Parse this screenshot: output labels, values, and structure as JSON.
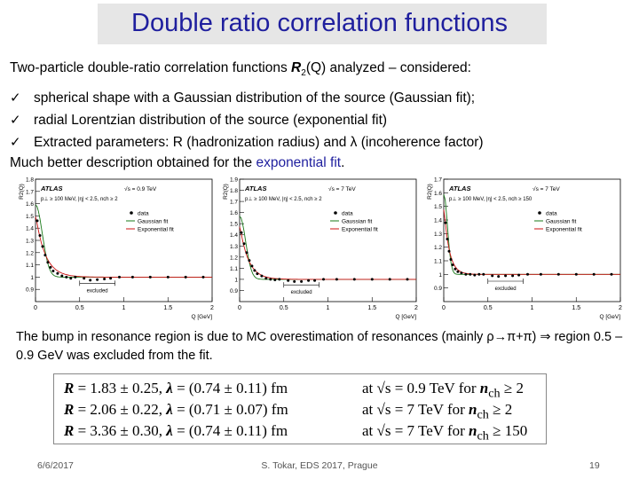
{
  "slide": {
    "title": "Double ratio correlation functions",
    "intro_text": "Two-particle double-ratio correlation functions ",
    "intro_symbol": "R",
    "intro_sub": "2",
    "intro_after": "(Q) analyzed – considered:",
    "bullets": [
      "spherical shape with a Gaussian distribution of the source (Gaussian fit);",
      "radial Lorentzian distribution of the source (exponential fit)",
      "Extracted parameters: R  (hadronization radius) and λ (incoherence factor)"
    ],
    "better_text": "Much better description obtained for the ",
    "better_highlight": "exponential fit",
    "better_end": ".",
    "bump_text": "The bump in resonance region is due to MC overestimation of resonances (mainly ρ→π+π) ⇒ region 0.5 – 0.9 GeV was excluded from the fit.",
    "results": [
      {
        "R": "R",
        "r_val": " = 1.83 ± 0.25, ",
        "lambda": "λ",
        "l_val": " = (0.74 ± 0.11) fm",
        "cond": "at √s = 0.9 TeV for ",
        "n": "n",
        "nsub": "ch",
        "ncut": " ≥    2"
      },
      {
        "R": "R",
        "r_val": " = 2.06 ± 0.22, ",
        "lambda": "λ",
        "l_val": " = (0.71 ± 0.07) fm",
        "cond": "at √s = 7 TeV    for ",
        "n": "n",
        "nsub": "ch",
        "ncut": " ≥    2"
      },
      {
        "R": "R",
        "r_val": " = 3.36 ± 0.30, ",
        "lambda": "λ",
        "l_val": " = (0.74 ± 0.11) fm",
        "cond": "at √s = 7 TeV    for ",
        "n": "n",
        "nsub": "ch",
        "ncut": " ≥ 150"
      }
    ],
    "footer_date": "6/6/2017",
    "footer_center": "S. Tokar, EDS 2017, Prague",
    "footer_page": "19",
    "colors": {
      "title": "#1f1f9e",
      "gauss": "#1a7a1a",
      "expo": "#cc1111"
    }
  },
  "chart_data": [
    {
      "type": "scatter",
      "atlas": "ATLAS",
      "energy_label": "√s = 0.9 TeV",
      "cuts": "p⊥ ≥ 100 MeV, |η| < 2.5, nch ≥ 2",
      "legend": [
        "data",
        "Gaussian fit",
        "Exponential fit"
      ],
      "excluded_label": "excluded",
      "ylabel": "R2(Q)",
      "xlabel": "Q [GeV]",
      "ylim": [
        0.8,
        1.8
      ],
      "xlim": [
        0,
        2
      ],
      "x_ticks": [
        "0",
        "0.5",
        "1",
        "1.5",
        "2"
      ],
      "y_ticks": [
        "0.9",
        "1",
        "1.1",
        "1.2",
        "1.3",
        "1.4",
        "1.5",
        "1.6",
        "1.7",
        "1.8"
      ],
      "excluded_range": [
        0.5,
        0.9
      ],
      "series": [
        {
          "name": "data",
          "x": [
            0.02,
            0.05,
            0.08,
            0.11,
            0.14,
            0.17,
            0.2,
            0.25,
            0.3,
            0.35,
            0.4,
            0.45,
            0.55,
            0.62,
            0.7,
            0.78,
            0.85,
            0.95,
            1.1,
            1.3,
            1.5,
            1.7,
            1.9
          ],
          "y": [
            1.46,
            1.34,
            1.25,
            1.18,
            1.12,
            1.08,
            1.05,
            1.03,
            1.01,
            1.0,
            0.99,
            1.0,
            0.99,
            0.975,
            0.98,
            0.985,
            0.99,
            1.0,
            1.0,
            1.0,
            1.0,
            1.0,
            1.0
          ]
        },
        {
          "name": "Gaussian fit",
          "r": 1.83,
          "lambda": 0.74
        },
        {
          "name": "Exponential fit",
          "r": 1.83,
          "lambda": 0.74
        }
      ]
    },
    {
      "type": "scatter",
      "atlas": "ATLAS",
      "energy_label": "√s = 7 TeV",
      "cuts": "p⊥ ≥ 100 MeV, |η| < 2.5, nch ≥ 2",
      "legend": [
        "data",
        "Gaussian fit",
        "Exponential fit"
      ],
      "excluded_label": "excluded",
      "ylabel": "R2(Q)",
      "xlabel": "Q [GeV]",
      "ylim": [
        0.8,
        1.9
      ],
      "xlim": [
        0,
        2
      ],
      "x_ticks": [
        "0",
        "0.5",
        "1",
        "1.5",
        "2"
      ],
      "y_ticks": [
        "0.9",
        "1",
        "1.1",
        "1.2",
        "1.3",
        "1.4",
        "1.5",
        "1.6",
        "1.7",
        "1.8",
        "1.9"
      ],
      "excluded_range": [
        0.5,
        0.9
      ],
      "series": [
        {
          "name": "data",
          "x": [
            0.02,
            0.05,
            0.08,
            0.11,
            0.14,
            0.17,
            0.2,
            0.25,
            0.3,
            0.35,
            0.4,
            0.45,
            0.55,
            0.62,
            0.7,
            0.78,
            0.85,
            0.95,
            1.1,
            1.3,
            1.5,
            1.7,
            1.9
          ],
          "y": [
            1.42,
            1.32,
            1.24,
            1.17,
            1.12,
            1.08,
            1.05,
            1.03,
            1.01,
            1.0,
            0.995,
            1.0,
            0.99,
            0.98,
            0.98,
            0.99,
            0.99,
            1.0,
            1.0,
            1.0,
            1.0,
            1.0,
            1.0
          ]
        },
        {
          "name": "Gaussian fit",
          "r": 2.06,
          "lambda": 0.71
        },
        {
          "name": "Exponential fit",
          "r": 2.06,
          "lambda": 0.71
        }
      ]
    },
    {
      "type": "scatter",
      "atlas": "ATLAS",
      "energy_label": "√s = 7 TeV",
      "cuts": "p⊥ ≥ 100 MeV, |η| < 2.5, nch ≥ 150",
      "legend": [
        "data",
        "Gaussian fit",
        "Exponential fit"
      ],
      "excluded_label": "excluded",
      "ylabel": "R2(Q)",
      "xlabel": "Q [GeV]",
      "ylim": [
        0.8,
        1.7
      ],
      "xlim": [
        0,
        2
      ],
      "x_ticks": [
        "0",
        "0.5",
        "1",
        "1.5",
        "2"
      ],
      "y_ticks": [
        "0.9",
        "1",
        "1.1",
        "1.2",
        "1.3",
        "1.4",
        "1.5",
        "1.6",
        "1.7"
      ],
      "excluded_range": [
        0.5,
        0.9
      ],
      "series": [
        {
          "name": "data",
          "x": [
            0.02,
            0.04,
            0.06,
            0.08,
            0.1,
            0.13,
            0.16,
            0.2,
            0.25,
            0.3,
            0.35,
            0.4,
            0.45,
            0.55,
            0.62,
            0.7,
            0.78,
            0.85,
            0.95,
            1.1,
            1.3,
            1.5,
            1.7,
            1.9
          ],
          "y": [
            1.38,
            1.26,
            1.17,
            1.11,
            1.07,
            1.04,
            1.02,
            1.01,
            1.0,
            1.0,
            0.995,
            1.0,
            1.0,
            0.99,
            0.985,
            0.99,
            0.99,
            0.995,
            1.0,
            1.0,
            1.0,
            1.0,
            1.0,
            1.0
          ]
        },
        {
          "name": "Gaussian fit",
          "r": 3.36,
          "lambda": 0.74
        },
        {
          "name": "Exponential fit",
          "r": 3.36,
          "lambda": 0.74
        }
      ]
    }
  ]
}
